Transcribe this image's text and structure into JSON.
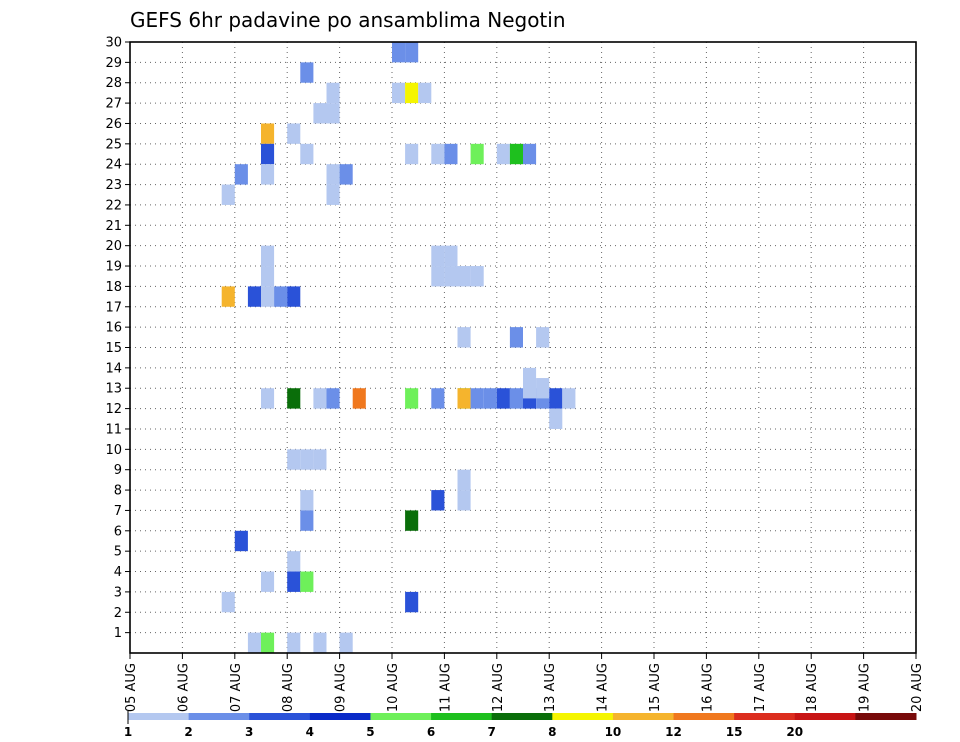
{
  "chart_data": {
    "type": "heatmap",
    "title": "GEFS 6hr padavine po ansamblima Negotin",
    "xlabel": "",
    "ylabel": "",
    "x_tick_labels": [
      "05 AUG",
      "06 AUG",
      "07 AUG",
      "08 AUG",
      "09 AUG",
      "10 AUG",
      "11 AUG",
      "12 AUG",
      "13 AUG",
      "14 AUG",
      "15 AUG",
      "16 AUG",
      "17 AUG",
      "18 AUG",
      "19 AUG",
      "20 AUG"
    ],
    "x_step_hours": 6,
    "xlim_steps": [
      0,
      60
    ],
    "y_tick_labels": [
      "1",
      "2",
      "3",
      "4",
      "5",
      "6",
      "7",
      "8",
      "9",
      "10",
      "11",
      "12",
      "13",
      "14",
      "15",
      "16",
      "17",
      "18",
      "19",
      "20",
      "21",
      "22",
      "23",
      "24",
      "25",
      "26",
      "27",
      "28",
      "29",
      "30"
    ],
    "ylim": [
      0,
      30
    ],
    "grid": true,
    "legend_position": "bottom",
    "legend": {
      "bounds": [
        "1",
        "2",
        "3",
        "4",
        "5",
        "6",
        "7",
        "8",
        "10",
        "12",
        "15",
        "20"
      ],
      "colors": [
        "#b4c8f0",
        "#6b8fe8",
        "#2a52d8",
        "#0a2ac8",
        "#6ef05a",
        "#1ec01e",
        "#0a6e0a",
        "#f5f500",
        "#f5b42d",
        "#f0781e",
        "#dc2d1e",
        "#c81414",
        "#780a0a"
      ]
    },
    "cell_value_unit": "legend color index (0 = 1-2, 1 = 2-3, 2 = 3-4, 4 = 5-6, 5 = 6-7, 6 = 7-8, 7 = 8-10, 8 = 10-12, 9 = 12-15)",
    "cells": [
      [
        20,
        30,
        1
      ],
      [
        21,
        30,
        1
      ],
      [
        13,
        29,
        1
      ],
      [
        15,
        28,
        0
      ],
      [
        20,
        28,
        0
      ],
      [
        21,
        28,
        7
      ],
      [
        22,
        28,
        0
      ],
      [
        14,
        27,
        0
      ],
      [
        15,
        27,
        0
      ],
      [
        10,
        26,
        8
      ],
      [
        12,
        26,
        0
      ],
      [
        10,
        25,
        2
      ],
      [
        13,
        25,
        0
      ],
      [
        21,
        25,
        0
      ],
      [
        23,
        25,
        0
      ],
      [
        24,
        25,
        1
      ],
      [
        26,
        25,
        4
      ],
      [
        28,
        25,
        0
      ],
      [
        29,
        25,
        5
      ],
      [
        30,
        25,
        1
      ],
      [
        8,
        24,
        1
      ],
      [
        10,
        24,
        0
      ],
      [
        15,
        24,
        0
      ],
      [
        16,
        24,
        1
      ],
      [
        7,
        23,
        0
      ],
      [
        15,
        23,
        0
      ],
      [
        10,
        20,
        0
      ],
      [
        23,
        20,
        0
      ],
      [
        24,
        20,
        0
      ],
      [
        10,
        19,
        0
      ],
      [
        23,
        19,
        0
      ],
      [
        24,
        19,
        0
      ],
      [
        25,
        19,
        0
      ],
      [
        26,
        19,
        0
      ],
      [
        7,
        18,
        8
      ],
      [
        9,
        18,
        2
      ],
      [
        10,
        18,
        0
      ],
      [
        11,
        18,
        1
      ],
      [
        12,
        18,
        2
      ],
      [
        25,
        16,
        0
      ],
      [
        29,
        16,
        1
      ],
      [
        31,
        16,
        0
      ],
      [
        30,
        14,
        0
      ],
      [
        10,
        13,
        0
      ],
      [
        12,
        13,
        6
      ],
      [
        14,
        13,
        0
      ],
      [
        15,
        13,
        1
      ],
      [
        17,
        13,
        9
      ],
      [
        21,
        13,
        4
      ],
      [
        23,
        13,
        1
      ],
      [
        25,
        13,
        4
      ],
      [
        25,
        13,
        8
      ],
      [
        26,
        13,
        1
      ],
      [
        27,
        13,
        1
      ],
      [
        28,
        13,
        2
      ],
      [
        29,
        13,
        1
      ],
      [
        30,
        13,
        2
      ],
      [
        31,
        13,
        1
      ],
      [
        32,
        13,
        2
      ],
      [
        33,
        13,
        0
      ],
      [
        30,
        13.5,
        0
      ],
      [
        31,
        13.5,
        0
      ],
      [
        32,
        12,
        0
      ],
      [
        12,
        10,
        0
      ],
      [
        13,
        10,
        0
      ],
      [
        14,
        10,
        0
      ],
      [
        25,
        9,
        0
      ],
      [
        13,
        8,
        0
      ],
      [
        23,
        8,
        2
      ],
      [
        25,
        8,
        0
      ],
      [
        13,
        7,
        1
      ],
      [
        21,
        7,
        6
      ],
      [
        8,
        6,
        2
      ],
      [
        12,
        5,
        0
      ],
      [
        10,
        4,
        0
      ],
      [
        12,
        4,
        2
      ],
      [
        13,
        4,
        4
      ],
      [
        7,
        3,
        0
      ],
      [
        21,
        3,
        2
      ],
      [
        9,
        1,
        0
      ],
      [
        10,
        1,
        4
      ],
      [
        12,
        1,
        0
      ],
      [
        14,
        1,
        0
      ],
      [
        16,
        1,
        0
      ]
    ]
  }
}
